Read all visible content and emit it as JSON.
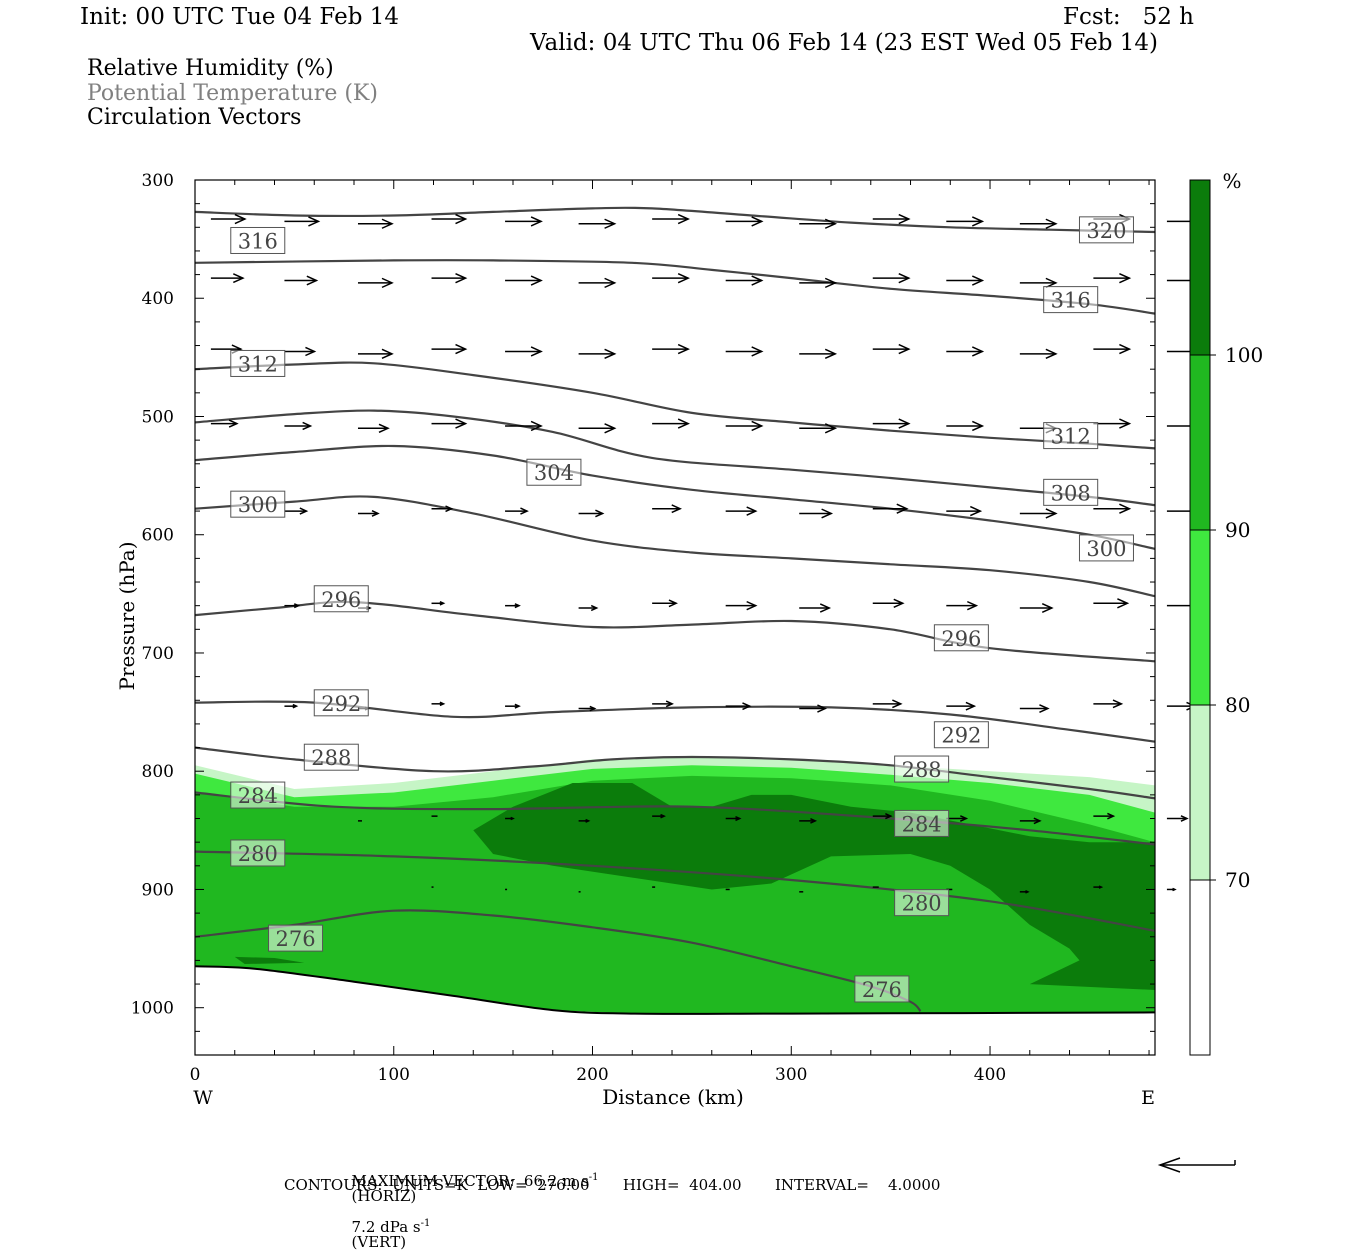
{
  "header": {
    "init": "Init: 00 UTC Tue 04 Feb 14",
    "fcst": "Fcst:   52 h",
    "valid": "Valid: 04 UTC Thu 06 Feb 14 (23 EST Wed 05 Feb 14)",
    "fields": [
      {
        "label": "Relative Humidity (%)",
        "color": "#000000"
      },
      {
        "label": "Potential Temperature (K)",
        "color": "#808080"
      },
      {
        "label": "Circulation Vectors",
        "color": "#000000"
      }
    ]
  },
  "footer": {
    "vector_line": "MAXIMUM VECTOR:  66.2 m s",
    "vector_unit_sup": "-1",
    "vector_horiz": "(HORIZ)",
    "vector_vert_val": "7.2 dPa s",
    "vector_vert_sup": "-1",
    "vector_vert": "(VERT)",
    "contours": "CONTOURS:  UNITS=K  LOW=  276.00       HIGH=  404.00       INTERVAL=    4.0000"
  },
  "chart_data": {
    "type": "cross-section",
    "xlabel": "Distance (km)",
    "ylabel": "Pressure (hPa)",
    "xlim": [
      0,
      483
    ],
    "ylim": [
      300,
      1040
    ],
    "x_ticks": [
      0,
      100,
      200,
      300,
      400
    ],
    "y_ticks": [
      300,
      400,
      500,
      600,
      700,
      800,
      900,
      1000
    ],
    "x_end_labels": {
      "left": "W",
      "right": "E"
    },
    "colorbar": {
      "unit": "%",
      "levels": [
        70,
        80,
        90,
        100
      ],
      "colors": [
        "#ffffff",
        "#c6f5c6",
        "#3fe83f",
        "#20b820",
        "#0b7c0b"
      ]
    },
    "rh_fill": {
      "rh70": [
        [
          0,
          795
        ],
        [
          50,
          815
        ],
        [
          100,
          810
        ],
        [
          150,
          800
        ],
        [
          200,
          790
        ],
        [
          250,
          787
        ],
        [
          300,
          790
        ],
        [
          350,
          795
        ],
        [
          400,
          800
        ],
        [
          450,
          805
        ],
        [
          483,
          812
        ],
        [
          483,
          1005
        ],
        [
          0,
          1005
        ]
      ],
      "rh80": [
        [
          0,
          802
        ],
        [
          50,
          822
        ],
        [
          100,
          818
        ],
        [
          150,
          808
        ],
        [
          200,
          798
        ],
        [
          250,
          795
        ],
        [
          300,
          797
        ],
        [
          350,
          803
        ],
        [
          400,
          810
        ],
        [
          450,
          820
        ],
        [
          483,
          835
        ],
        [
          483,
          1005
        ],
        [
          0,
          1005
        ]
      ],
      "rh90": [
        [
          0,
          818
        ],
        [
          50,
          830
        ],
        [
          100,
          830
        ],
        [
          150,
          822
        ],
        [
          200,
          808
        ],
        [
          250,
          804
        ],
        [
          300,
          806
        ],
        [
          350,
          812
        ],
        [
          400,
          825
        ],
        [
          450,
          845
        ],
        [
          483,
          860
        ],
        [
          483,
          1005
        ],
        [
          0,
          1005
        ]
      ],
      "rh100": [
        [
          [
            140,
            850
          ],
          [
            160,
            830
          ],
          [
            190,
            810
          ],
          [
            220,
            810
          ],
          [
            240,
            830
          ],
          [
            260,
            830
          ],
          [
            280,
            820
          ],
          [
            300,
            820
          ],
          [
            330,
            830
          ],
          [
            360,
            835
          ],
          [
            390,
            845
          ],
          [
            420,
            855
          ],
          [
            450,
            860
          ],
          [
            483,
            860
          ],
          [
            483,
            985
          ],
          [
            420,
            980
          ],
          [
            445,
            960
          ],
          [
            440,
            950
          ],
          [
            420,
            930
          ],
          [
            400,
            900
          ],
          [
            380,
            880
          ],
          [
            360,
            870
          ],
          [
            320,
            872
          ],
          [
            290,
            895
          ],
          [
            260,
            900
          ],
          [
            220,
            890
          ],
          [
            180,
            880
          ],
          [
            150,
            870
          ]
        ],
        [
          [
            20,
            957
          ],
          [
            40,
            958
          ],
          [
            55,
            962
          ],
          [
            25,
            963
          ]
        ]
      ]
    },
    "theta_contours": [
      {
        "value": 276,
        "points": [
          [
            0,
            940
          ],
          [
            50,
            930
          ],
          [
            100,
            918
          ],
          [
            150,
            922
          ],
          [
            200,
            932
          ],
          [
            250,
            945
          ],
          [
            300,
            965
          ],
          [
            340,
            982
          ],
          [
            360,
            995
          ],
          [
            365,
            1003
          ]
        ],
        "label_at": [
          37,
          942
        ]
      },
      {
        "value": 280,
        "points": [
          [
            0,
            868
          ],
          [
            100,
            872
          ],
          [
            200,
            880
          ],
          [
            300,
            892
          ],
          [
            400,
            910
          ],
          [
            483,
            935
          ]
        ],
        "label_at": [
          18,
          870
        ]
      },
      {
        "value": 284,
        "points": [
          [
            0,
            818
          ],
          [
            70,
            830
          ],
          [
            150,
            832
          ],
          [
            250,
            830
          ],
          [
            350,
            840
          ],
          [
            420,
            850
          ],
          [
            483,
            862
          ]
        ],
        "label_at": [
          18,
          821
        ]
      },
      {
        "value": 288,
        "points": [
          [
            0,
            780
          ],
          [
            50,
            790
          ],
          [
            120,
            800
          ],
          [
            170,
            796
          ],
          [
            210,
            790
          ],
          [
            250,
            788
          ],
          [
            300,
            790
          ],
          [
            350,
            795
          ],
          [
            400,
            805
          ],
          [
            450,
            815
          ],
          [
            483,
            823
          ]
        ],
        "label_at": [
          55,
          789
        ]
      },
      {
        "value": 292,
        "points": [
          [
            0,
            742
          ],
          [
            60,
            742
          ],
          [
            130,
            754
          ],
          [
            180,
            750
          ],
          [
            250,
            746
          ],
          [
            320,
            746
          ],
          [
            380,
            752
          ],
          [
            440,
            765
          ],
          [
            483,
            775
          ]
        ],
        "label_at": [
          60,
          743
        ]
      },
      {
        "value": 296,
        "points": [
          [
            0,
            668
          ],
          [
            40,
            662
          ],
          [
            80,
            657
          ],
          [
            140,
            668
          ],
          [
            200,
            678
          ],
          [
            250,
            676
          ],
          [
            300,
            673
          ],
          [
            350,
            680
          ],
          [
            400,
            696
          ],
          [
            483,
            707
          ]
        ],
        "label_at": [
          60,
          655
        ]
      },
      {
        "value": 300,
        "points": [
          [
            0,
            578
          ],
          [
            50,
            572
          ],
          [
            90,
            568
          ],
          [
            140,
            582
          ],
          [
            200,
            605
          ],
          [
            250,
            615
          ],
          [
            300,
            620
          ],
          [
            350,
            625
          ],
          [
            400,
            630
          ],
          [
            450,
            640
          ],
          [
            483,
            652
          ]
        ],
        "label_at": [
          18,
          575
        ]
      },
      {
        "value": 304,
        "points": [
          [
            0,
            537
          ],
          [
            50,
            530
          ],
          [
            100,
            525
          ],
          [
            150,
            533
          ],
          [
            200,
            550
          ],
          [
            250,
            562
          ],
          [
            300,
            570
          ],
          [
            350,
            578
          ],
          [
            400,
            588
          ],
          [
            450,
            600
          ],
          [
            483,
            612
          ]
        ],
        "label_at": [
          167,
          548
        ]
      },
      {
        "value": 308,
        "points": [
          [
            0,
            505
          ],
          [
            50,
            498
          ],
          [
            90,
            495
          ],
          [
            130,
            500
          ],
          [
            180,
            513
          ],
          [
            230,
            535
          ],
          [
            300,
            545
          ],
          [
            350,
            552
          ],
          [
            400,
            560
          ],
          [
            450,
            568
          ],
          [
            483,
            575
          ]
        ],
        "label_at": [
          427,
          565
        ]
      },
      {
        "value": 312,
        "points": [
          [
            0,
            460
          ],
          [
            50,
            456
          ],
          [
            90,
            455
          ],
          [
            140,
            465
          ],
          [
            200,
            480
          ],
          [
            250,
            497
          ],
          [
            300,
            505
          ],
          [
            350,
            512
          ],
          [
            400,
            518
          ],
          [
            450,
            523
          ],
          [
            483,
            527
          ]
        ],
        "label_at": [
          18,
          456
        ]
      },
      {
        "value": 316,
        "points": [
          [
            0,
            370
          ],
          [
            100,
            368
          ],
          [
            150,
            368
          ],
          [
            220,
            370
          ],
          [
            260,
            376
          ],
          [
            300,
            383
          ],
          [
            350,
            392
          ],
          [
            400,
            398
          ],
          [
            450,
            405
          ],
          [
            483,
            413
          ]
        ],
        "label_at": [
          18,
          352
        ]
      },
      {
        "value": 320,
        "points": [
          [
            0,
            327
          ],
          [
            50,
            330
          ],
          [
            100,
            330
          ],
          [
            150,
            327
          ],
          [
            200,
            324
          ],
          [
            230,
            324
          ],
          [
            280,
            330
          ],
          [
            330,
            336
          ],
          [
            380,
            340
          ],
          [
            430,
            342
          ],
          [
            483,
            344
          ]
        ],
        "label_at": [
          445,
          343
        ]
      }
    ],
    "arrow_label_positions": {
      "316_right": [
        427,
        402
      ],
      "312_right": [
        427,
        517
      ],
      "300_right": [
        445,
        612
      ],
      "296_right": [
        372,
        688
      ],
      "292_right": [
        372,
        770
      ],
      "288_right": [
        352,
        799
      ],
      "284_right": [
        352,
        845
      ],
      "280_right": [
        352,
        912
      ],
      "276_right": [
        332,
        985
      ]
    },
    "vectors": {
      "rows": [
        {
          "p": 335,
          "dxs": [
            34,
            34,
            34,
            34,
            36,
            36,
            36,
            36,
            36,
            36,
            36,
            36,
            36,
            36
          ]
        },
        {
          "p": 385,
          "dxs": [
            32,
            32,
            34,
            34,
            36,
            36,
            36,
            36,
            36,
            36,
            36,
            36,
            36,
            36
          ]
        },
        {
          "p": 445,
          "dxs": [
            30,
            30,
            34,
            34,
            36,
            36,
            36,
            36,
            36,
            36,
            36,
            36,
            36,
            36
          ]
        },
        {
          "p": 508,
          "dxs": [
            26,
            26,
            30,
            34,
            36,
            36,
            36,
            36,
            36,
            36,
            36,
            36,
            36,
            36
          ]
        },
        {
          "p": 580,
          "dxs": [
            0,
            22,
            20,
            20,
            22,
            24,
            28,
            30,
            32,
            34,
            34,
            36,
            36,
            36
          ]
        },
        {
          "p": 660,
          "dxs": [
            0,
            14,
            12,
            12,
            14,
            18,
            24,
            30,
            30,
            30,
            30,
            32,
            34,
            34
          ]
        },
        {
          "p": 745,
          "dxs": [
            0,
            12,
            10,
            12,
            14,
            16,
            20,
            24,
            26,
            28,
            28,
            28,
            28,
            28
          ]
        },
        {
          "p": 840,
          "dxs": [
            0,
            0,
            4,
            6,
            8,
            10,
            12,
            14,
            16,
            18,
            20,
            20,
            20,
            20
          ]
        },
        {
          "p": 900,
          "dxs": [
            0,
            0,
            0,
            2,
            2,
            2,
            3,
            4,
            4,
            6,
            6,
            8,
            8,
            8
          ]
        }
      ],
      "reference_arrow": "left"
    },
    "terrain_p": [
      [
        0,
        965
      ],
      [
        30,
        967
      ],
      [
        80,
        978
      ],
      [
        130,
        990
      ],
      [
        180,
        1002
      ],
      [
        220,
        1005
      ],
      [
        300,
        1005
      ],
      [
        483,
        1004
      ]
    ]
  }
}
